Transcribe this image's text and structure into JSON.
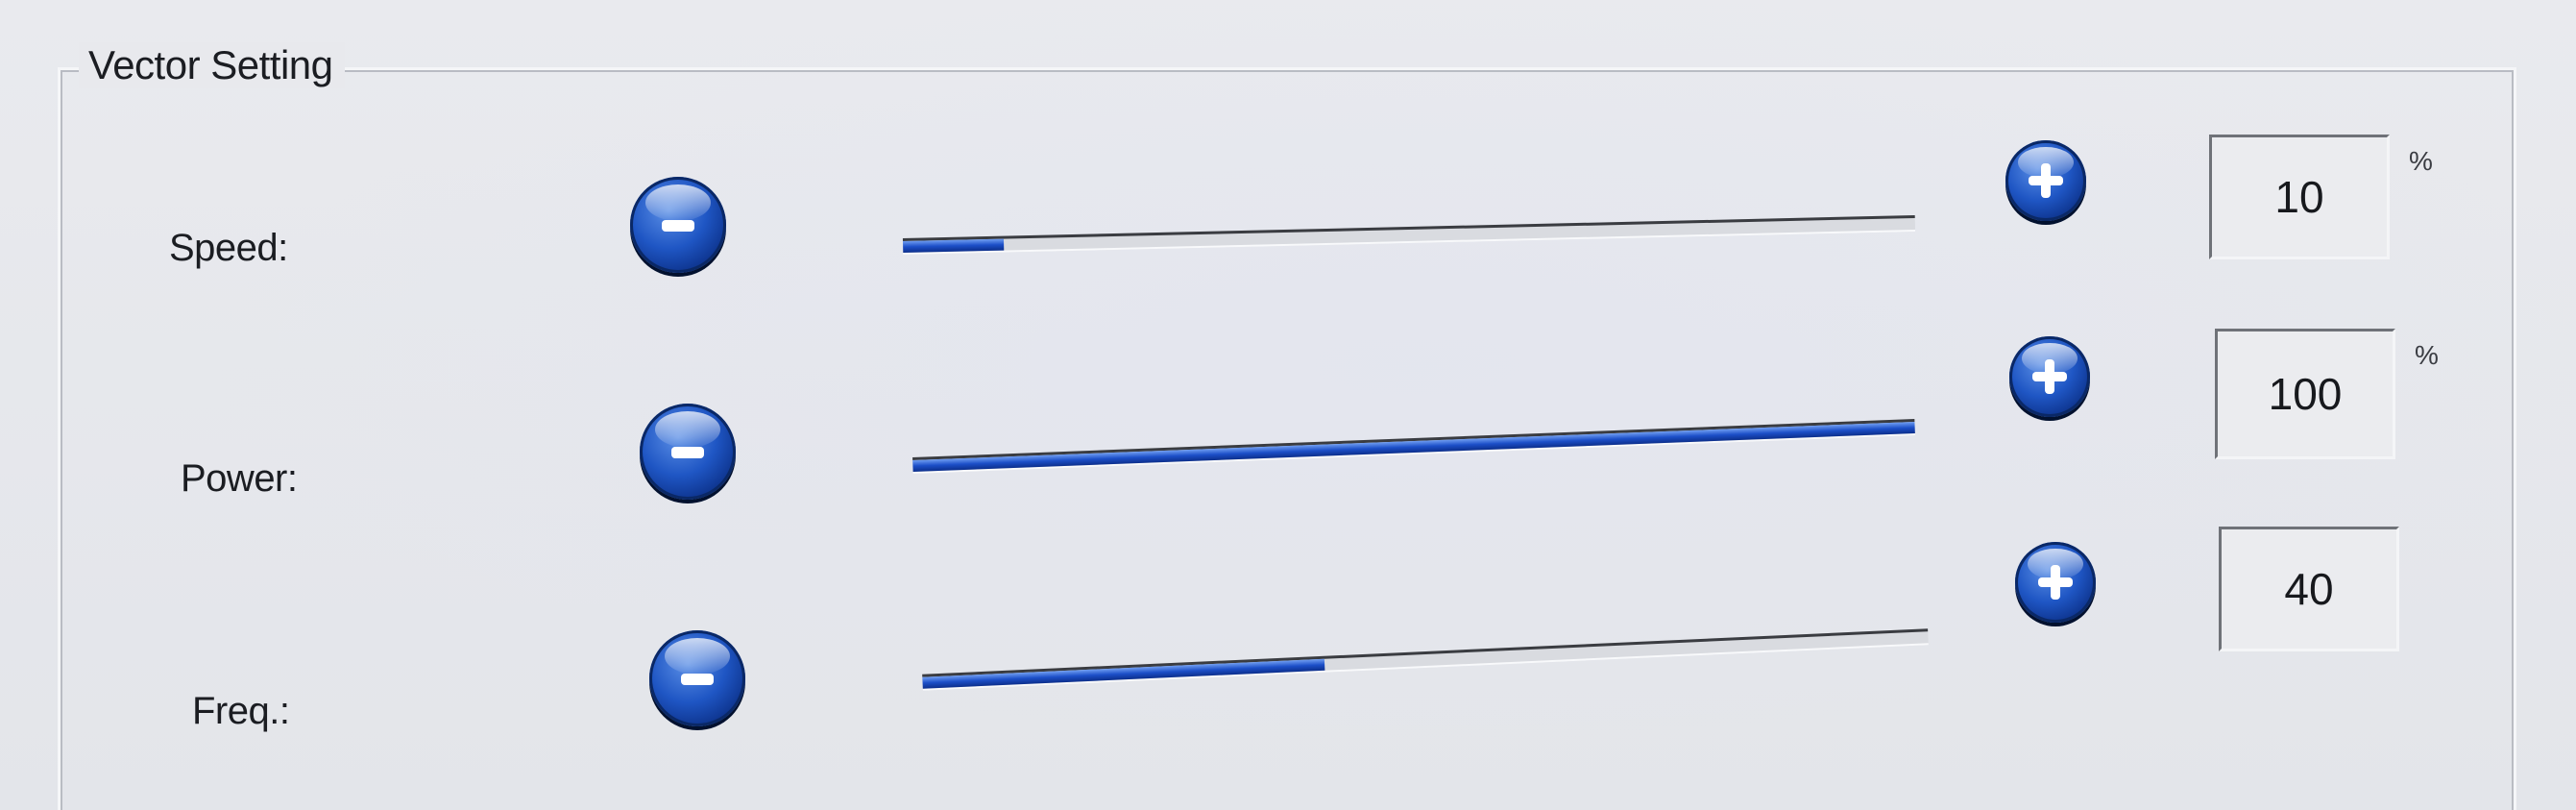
{
  "panel": {
    "title": "Vector Setting"
  },
  "rows": [
    {
      "label": "Speed:",
      "value": "10",
      "unit": "%",
      "level": 0.1
    },
    {
      "label": "Power:",
      "value": "100",
      "unit": "%",
      "level": 1.0
    },
    {
      "label": "Freq.:",
      "value": "40",
      "unit": "",
      "level": 0.4
    }
  ],
  "colors": {
    "accent": "#1f56c4",
    "background": "#e6e7ea"
  },
  "icons": {
    "decrease": "minus-circle-icon",
    "increase": "plus-circle-icon"
  }
}
